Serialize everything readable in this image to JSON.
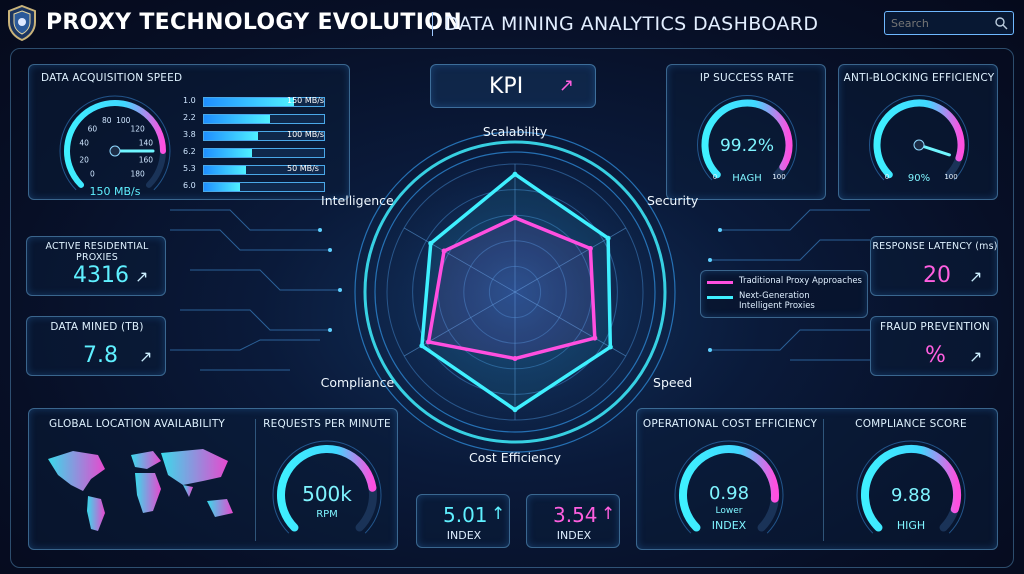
{
  "header": {
    "title": "PROXY TECHNOLOGY EVOLUTION",
    "subtitle": "DATA MINING ANALYTICS DASHBOARD",
    "search_placeholder": "Search"
  },
  "speed_panel": {
    "title": "DATA ACQUISITION SPEED",
    "gauge_ticks": [
      "0",
      "20",
      "40",
      "60",
      "80",
      "100",
      "120",
      "140",
      "160",
      "180"
    ],
    "gauge_value_label": "150 MB/s",
    "gauge_value": 150,
    "gauge_max": 180,
    "bars": [
      {
        "num": "1.0",
        "fill": 0.75,
        "label": "150 MB/s"
      },
      {
        "num": "2.2",
        "fill": 0.55,
        "label": ""
      },
      {
        "num": "3.8",
        "fill": 0.45,
        "label": "100 MB/s"
      },
      {
        "num": "6.2",
        "fill": 0.4,
        "label": ""
      },
      {
        "num": "5.3",
        "fill": 0.35,
        "label": "50 MB/s"
      },
      {
        "num": "6.0",
        "fill": 0.3,
        "label": ""
      }
    ]
  },
  "kpi": {
    "label": "KPI",
    "arrow": "↗"
  },
  "ip_success": {
    "title": "IP SUCCESS RATE",
    "value": "99.2%",
    "sub": "HAGH",
    "min": "0",
    "max": "100",
    "fill": 0.95
  },
  "anti_blocking": {
    "title": "ANTI-BLOCKING EFFICIENCY",
    "value": "90%",
    "min": "0",
    "max": "100",
    "fill": 0.9
  },
  "active_proxies": {
    "title": "ACTIVE RESIDENTIAL PROXIES",
    "value": "4316",
    "arrow": "↗"
  },
  "data_mined": {
    "title": "DATA MINED (TB)",
    "value": "7.8",
    "arrow": "↗"
  },
  "response_latency": {
    "title": "RESPONSE LATENCY (ms)",
    "value": "20",
    "arrow": "↗"
  },
  "fraud_prevention": {
    "title": "FRAUD PREVENTION",
    "value": "%",
    "arrow": "↗"
  },
  "radar": {
    "axes": [
      "Scalability",
      "Security",
      "Speed",
      "Cost Efficiency",
      "Compliance",
      "Intelligence"
    ],
    "legend": [
      {
        "name": "Traditional Proxy Approaches",
        "color": "#ff4fe0"
      },
      {
        "name": "Next-Generation Intelligent Proxies",
        "color": "#3ff0ff"
      }
    ],
    "traditional": [
      0.58,
      0.68,
      0.72,
      0.52,
      0.78,
      0.64
    ],
    "next_gen": [
      0.92,
      0.84,
      0.86,
      0.92,
      0.84,
      0.76
    ]
  },
  "global_location": {
    "title": "GLOBAL LOCATION AVAILABILITY"
  },
  "requests": {
    "title": "REQUESTS PER MINUTE",
    "value": "500k",
    "unit": "RPM",
    "fill": 0.8
  },
  "index1": {
    "value": "5.01",
    "arrow": "↑",
    "label": "INDEX"
  },
  "index2": {
    "value": "3.54",
    "arrow": "↑",
    "label": "INDEX"
  },
  "operational_cost": {
    "title": "OPERATIONAL COST EFFICIENCY",
    "value": "0.98",
    "sub": "Lower",
    "unit": "INDEX",
    "fill": 0.85
  },
  "compliance_score": {
    "title": "COMPLIANCE SCORE",
    "value": "9.88",
    "unit": "HIGH",
    "fill": 0.9
  }
}
